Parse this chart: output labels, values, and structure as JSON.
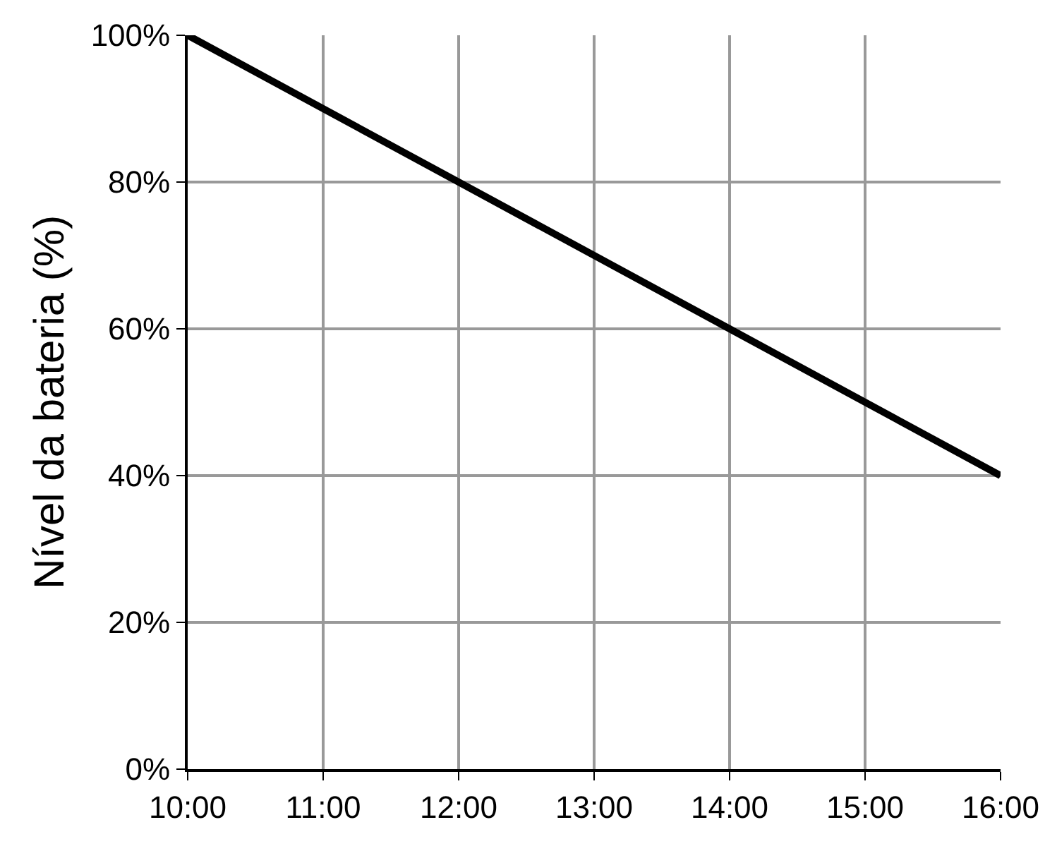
{
  "chart_data": {
    "type": "line",
    "ylabel": "Nível da bateria (%)",
    "x": [
      10,
      16
    ],
    "series": [
      {
        "color": "#000000",
        "values": [
          100,
          40
        ]
      }
    ],
    "xlim": [
      10,
      16
    ],
    "xticks": [
      {
        "value": 10,
        "label": "10:00"
      },
      {
        "value": 11,
        "label": "11:00"
      },
      {
        "value": 12,
        "label": "12:00"
      },
      {
        "value": 13,
        "label": "13:00"
      },
      {
        "value": 14,
        "label": "14:00"
      },
      {
        "value": 15,
        "label": "15:00"
      },
      {
        "value": 16,
        "label": "16:00"
      }
    ],
    "ylim": [
      0,
      100
    ],
    "yticks": [
      {
        "value": 0,
        "label": "0%"
      },
      {
        "value": 20,
        "label": "20%"
      },
      {
        "value": 40,
        "label": "40%"
      },
      {
        "value": 60,
        "label": "60%"
      },
      {
        "value": 80,
        "label": "80%"
      },
      {
        "value": 100,
        "label": "100%"
      }
    ],
    "grid": true,
    "marker": "none",
    "line_style": "solid",
    "legend": false
  }
}
